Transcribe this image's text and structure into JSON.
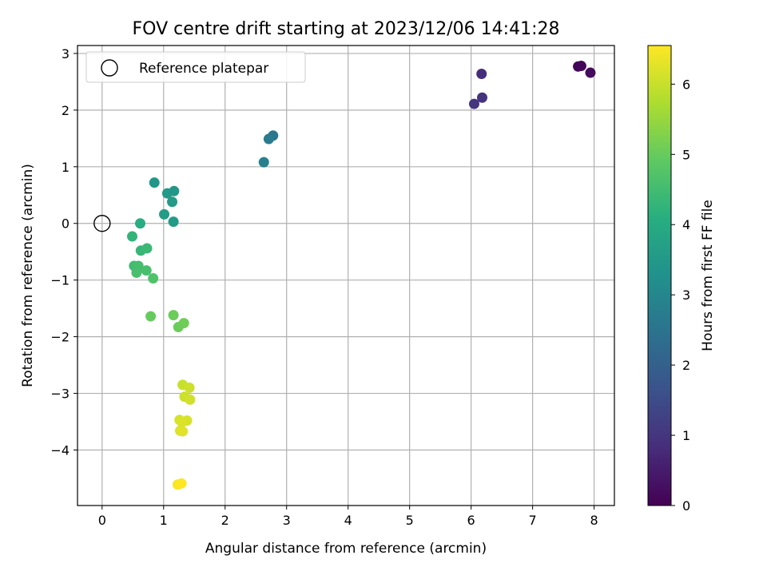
{
  "chart_data": {
    "type": "scatter",
    "title": "FOV centre drift starting at 2023/12/06 14:41:28",
    "xlabel": "Angular distance from reference (arcmin)",
    "ylabel": "Rotation from reference (arcmin)",
    "xlim": [
      -0.4,
      8.33
    ],
    "ylim": [
      -4.98,
      3.14
    ],
    "xticks": [
      0,
      1,
      2,
      3,
      4,
      5,
      6,
      7,
      8
    ],
    "yticks": [
      -4,
      -3,
      -2,
      -1,
      0,
      1,
      2,
      3
    ],
    "grid": true,
    "legend": {
      "placement": "top-left",
      "entries": [
        "Reference platepar"
      ]
    },
    "reference_point": {
      "name": "Reference platepar",
      "x": 0,
      "y": 0
    },
    "colorbar": {
      "label": "Hours from first FF file",
      "min": 0,
      "max": 6.55,
      "ticks": [
        0,
        1,
        2,
        3,
        4,
        5,
        6
      ],
      "colormap": "viridis"
    },
    "points": [
      {
        "x": 7.74,
        "y": 2.77,
        "c": 0.05
      },
      {
        "x": 7.79,
        "y": 2.78,
        "c": 0.1
      },
      {
        "x": 7.94,
        "y": 2.66,
        "c": 0.18
      },
      {
        "x": 6.17,
        "y": 2.64,
        "c": 0.85
      },
      {
        "x": 6.18,
        "y": 2.22,
        "c": 0.95
      },
      {
        "x": 6.05,
        "y": 2.11,
        "c": 1.0
      },
      {
        "x": 2.78,
        "y": 1.55,
        "c": 2.55
      },
      {
        "x": 2.71,
        "y": 1.49,
        "c": 2.7
      },
      {
        "x": 2.63,
        "y": 1.08,
        "c": 2.85
      },
      {
        "x": 0.85,
        "y": 0.72,
        "c": 3.45
      },
      {
        "x": 1.06,
        "y": 0.53,
        "c": 3.5
      },
      {
        "x": 1.17,
        "y": 0.57,
        "c": 3.45
      },
      {
        "x": 1.14,
        "y": 0.38,
        "c": 3.55
      },
      {
        "x": 1.01,
        "y": 0.16,
        "c": 3.6
      },
      {
        "x": 1.16,
        "y": 0.03,
        "c": 3.55
      },
      {
        "x": 0.62,
        "y": 0.0,
        "c": 4.05
      },
      {
        "x": 0.49,
        "y": -0.23,
        "c": 4.25
      },
      {
        "x": 0.63,
        "y": -0.48,
        "c": 4.35
      },
      {
        "x": 0.73,
        "y": -0.44,
        "c": 4.4
      },
      {
        "x": 0.52,
        "y": -0.75,
        "c": 4.5
      },
      {
        "x": 0.59,
        "y": -0.75,
        "c": 4.55
      },
      {
        "x": 0.56,
        "y": -0.87,
        "c": 4.6
      },
      {
        "x": 0.72,
        "y": -0.83,
        "c": 4.6
      },
      {
        "x": 0.83,
        "y": -0.97,
        "c": 4.7
      },
      {
        "x": 0.79,
        "y": -1.64,
        "c": 5.0
      },
      {
        "x": 1.16,
        "y": -1.62,
        "c": 5.05
      },
      {
        "x": 1.33,
        "y": -1.76,
        "c": 5.1
      },
      {
        "x": 1.24,
        "y": -1.83,
        "c": 5.05
      },
      {
        "x": 1.31,
        "y": -2.85,
        "c": 6.0
      },
      {
        "x": 1.42,
        "y": -2.9,
        "c": 6.05
      },
      {
        "x": 1.34,
        "y": -3.06,
        "c": 6.05
      },
      {
        "x": 1.43,
        "y": -3.11,
        "c": 6.1
      },
      {
        "x": 1.26,
        "y": -3.47,
        "c": 6.15
      },
      {
        "x": 1.38,
        "y": -3.48,
        "c": 6.15
      },
      {
        "x": 1.3,
        "y": -3.51,
        "c": 6.2
      },
      {
        "x": 1.27,
        "y": -3.66,
        "c": 6.2
      },
      {
        "x": 1.31,
        "y": -3.67,
        "c": 6.25
      },
      {
        "x": 1.23,
        "y": -4.61,
        "c": 6.5
      },
      {
        "x": 1.29,
        "y": -4.59,
        "c": 6.55
      }
    ]
  }
}
